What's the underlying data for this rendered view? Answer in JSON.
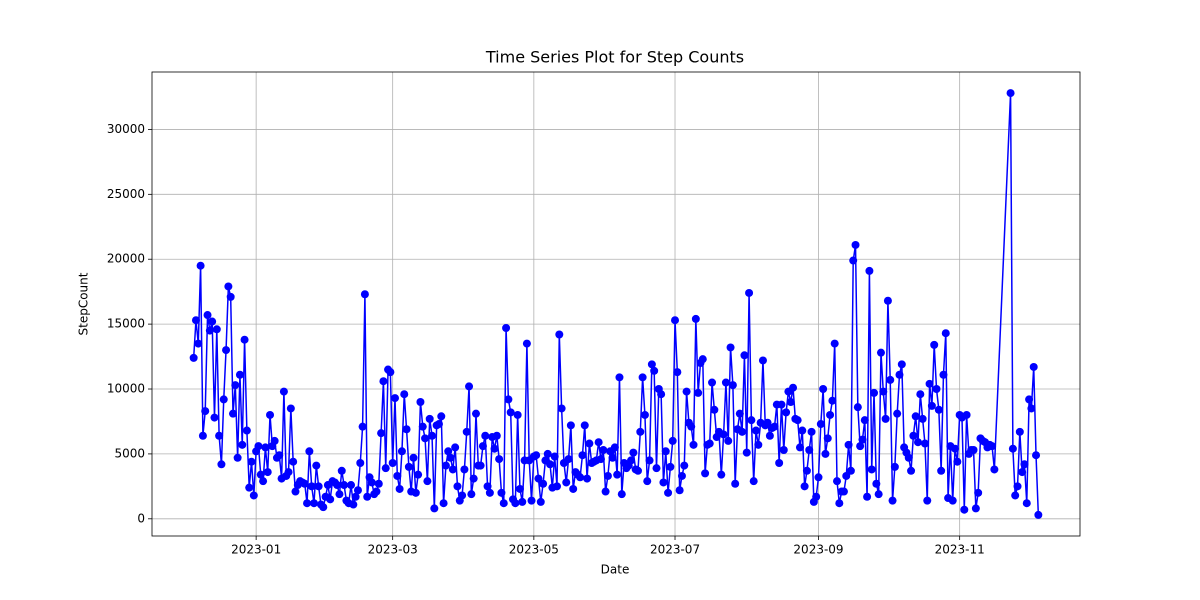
{
  "chart_data": {
    "type": "line",
    "title": "Time Series Plot for Step Counts",
    "x_label": "Date",
    "y_label": "StepCount",
    "color": "#0000ff",
    "grid": true,
    "x": [
      "2022-12-05",
      "2022-12-06",
      "2022-12-07",
      "2022-12-08",
      "2022-12-09",
      "2022-12-10",
      "2022-12-11",
      "2022-12-12",
      "2022-12-13",
      "2022-12-14",
      "2022-12-15",
      "2022-12-16",
      "2022-12-17",
      "2022-12-18",
      "2022-12-19",
      "2022-12-20",
      "2022-12-21",
      "2022-12-22",
      "2022-12-23",
      "2022-12-24",
      "2022-12-25",
      "2022-12-26",
      "2022-12-27",
      "2022-12-28",
      "2022-12-29",
      "2022-12-30",
      "2022-12-31",
      "2023-01-01",
      "2023-01-02",
      "2023-01-03",
      "2023-01-04",
      "2023-01-05",
      "2023-01-06",
      "2023-01-07",
      "2023-01-08",
      "2023-01-09",
      "2023-01-10",
      "2023-01-11",
      "2023-01-12",
      "2023-01-13",
      "2023-01-14",
      "2023-01-15",
      "2023-01-16",
      "2023-01-17",
      "2023-01-18",
      "2023-01-19",
      "2023-01-20",
      "2023-01-21",
      "2023-01-22",
      "2023-01-23",
      "2023-01-24",
      "2023-01-25",
      "2023-01-26",
      "2023-01-27",
      "2023-01-28",
      "2023-01-29",
      "2023-01-30",
      "2023-01-31",
      "2023-02-01",
      "2023-02-02",
      "2023-02-03",
      "2023-02-04",
      "2023-02-05",
      "2023-02-06",
      "2023-02-07",
      "2023-02-08",
      "2023-02-09",
      "2023-02-10",
      "2023-02-11",
      "2023-02-12",
      "2023-02-13",
      "2023-02-14",
      "2023-02-15",
      "2023-02-16",
      "2023-02-17",
      "2023-02-18",
      "2023-02-19",
      "2023-02-20",
      "2023-02-21",
      "2023-02-22",
      "2023-02-23",
      "2023-02-24",
      "2023-02-25",
      "2023-02-26",
      "2023-02-27",
      "2023-02-28",
      "2023-03-01",
      "2023-03-02",
      "2023-03-03",
      "2023-03-04",
      "2023-03-05",
      "2023-03-06",
      "2023-03-07",
      "2023-03-08",
      "2023-03-09",
      "2023-03-10",
      "2023-03-11",
      "2023-03-12",
      "2023-03-13",
      "2023-03-14",
      "2023-03-15",
      "2023-03-16",
      "2023-03-17",
      "2023-03-18",
      "2023-03-19",
      "2023-03-20",
      "2023-03-21",
      "2023-03-22",
      "2023-03-23",
      "2023-03-24",
      "2023-03-25",
      "2023-03-26",
      "2023-03-27",
      "2023-03-28",
      "2023-03-29",
      "2023-03-30",
      "2023-03-31",
      "2023-04-01",
      "2023-04-02",
      "2023-04-03",
      "2023-04-04",
      "2023-04-05",
      "2023-04-06",
      "2023-04-07",
      "2023-04-08",
      "2023-04-09",
      "2023-04-10",
      "2023-04-11",
      "2023-04-12",
      "2023-04-13",
      "2023-04-14",
      "2023-04-15",
      "2023-04-16",
      "2023-04-17",
      "2023-04-18",
      "2023-04-19",
      "2023-04-20",
      "2023-04-21",
      "2023-04-22",
      "2023-04-23",
      "2023-04-24",
      "2023-04-25",
      "2023-04-26",
      "2023-04-27",
      "2023-04-28",
      "2023-04-29",
      "2023-04-30",
      "2023-05-01",
      "2023-05-02",
      "2023-05-03",
      "2023-05-04",
      "2023-05-05",
      "2023-05-06",
      "2023-05-07",
      "2023-05-08",
      "2023-05-09",
      "2023-05-10",
      "2023-05-11",
      "2023-05-12",
      "2023-05-13",
      "2023-05-14",
      "2023-05-15",
      "2023-05-16",
      "2023-05-17",
      "2023-05-18",
      "2023-05-19",
      "2023-05-20",
      "2023-05-21",
      "2023-05-22",
      "2023-05-23",
      "2023-05-24",
      "2023-05-25",
      "2023-05-26",
      "2023-05-27",
      "2023-05-28",
      "2023-05-29",
      "2023-05-30",
      "2023-05-31",
      "2023-06-01",
      "2023-06-02",
      "2023-06-03",
      "2023-06-04",
      "2023-06-05",
      "2023-06-06",
      "2023-06-07",
      "2023-06-08",
      "2023-06-09",
      "2023-06-10",
      "2023-06-11",
      "2023-06-12",
      "2023-06-13",
      "2023-06-14",
      "2023-06-15",
      "2023-06-16",
      "2023-06-17",
      "2023-06-18",
      "2023-06-19",
      "2023-06-20",
      "2023-06-21",
      "2023-06-22",
      "2023-06-23",
      "2023-06-24",
      "2023-06-25",
      "2023-06-26",
      "2023-06-27",
      "2023-06-28",
      "2023-06-29",
      "2023-06-30",
      "2023-07-01",
      "2023-07-02",
      "2023-07-03",
      "2023-07-04",
      "2023-07-05",
      "2023-07-06",
      "2023-07-07",
      "2023-07-08",
      "2023-07-09",
      "2023-07-10",
      "2023-07-11",
      "2023-07-12",
      "2023-07-13",
      "2023-07-14",
      "2023-07-15",
      "2023-07-16",
      "2023-07-17",
      "2023-07-18",
      "2023-07-19",
      "2023-07-20",
      "2023-07-21",
      "2023-07-22",
      "2023-07-23",
      "2023-07-24",
      "2023-07-25",
      "2023-07-26",
      "2023-07-27",
      "2023-07-28",
      "2023-07-29",
      "2023-07-30",
      "2023-07-31",
      "2023-08-01",
      "2023-08-02",
      "2023-08-03",
      "2023-08-04",
      "2023-08-05",
      "2023-08-06",
      "2023-08-07",
      "2023-08-08",
      "2023-08-09",
      "2023-08-10",
      "2023-08-11",
      "2023-08-12",
      "2023-08-13",
      "2023-08-14",
      "2023-08-15",
      "2023-08-16",
      "2023-08-17",
      "2023-08-18",
      "2023-08-19",
      "2023-08-20",
      "2023-08-21",
      "2023-08-22",
      "2023-08-23",
      "2023-08-24",
      "2023-08-25",
      "2023-08-26",
      "2023-08-27",
      "2023-08-28",
      "2023-08-29",
      "2023-08-30",
      "2023-08-31",
      "2023-09-01",
      "2023-09-02",
      "2023-09-03",
      "2023-09-04",
      "2023-09-05",
      "2023-09-06",
      "2023-09-07",
      "2023-09-08",
      "2023-09-09",
      "2023-09-10",
      "2023-09-11",
      "2023-09-12",
      "2023-09-13",
      "2023-09-14",
      "2023-09-15",
      "2023-09-16",
      "2023-09-17",
      "2023-09-18",
      "2023-09-19",
      "2023-09-20",
      "2023-09-21",
      "2023-09-22",
      "2023-09-23",
      "2023-09-24",
      "2023-09-25",
      "2023-09-26",
      "2023-09-27",
      "2023-09-28",
      "2023-09-29",
      "2023-09-30",
      "2023-10-01",
      "2023-10-02",
      "2023-10-03",
      "2023-10-04",
      "2023-10-05",
      "2023-10-06",
      "2023-10-07",
      "2023-10-08",
      "2023-10-09",
      "2023-10-10",
      "2023-10-11",
      "2023-10-12",
      "2023-10-13",
      "2023-10-14",
      "2023-10-15",
      "2023-10-16",
      "2023-10-17",
      "2023-10-18",
      "2023-10-19",
      "2023-10-20",
      "2023-10-21",
      "2023-10-22",
      "2023-10-23",
      "2023-10-24",
      "2023-10-25",
      "2023-10-26",
      "2023-10-27",
      "2023-10-28",
      "2023-10-29",
      "2023-10-30",
      "2023-10-31",
      "2023-11-01",
      "2023-11-02",
      "2023-11-03",
      "2023-11-04",
      "2023-11-05",
      "2023-11-06",
      "2023-11-07",
      "2023-11-08",
      "2023-11-09",
      "2023-11-10",
      "2023-11-11",
      "2023-11-12",
      "2023-11-13",
      "2023-11-14",
      "2023-11-15",
      "2023-11-16",
      "2023-11-23",
      "2023-11-24",
      "2023-11-25",
      "2023-11-26",
      "2023-11-27",
      "2023-11-28",
      "2023-11-29",
      "2023-11-30",
      "2023-12-01",
      "2023-12-02",
      "2023-12-03",
      "2023-12-04",
      "2023-12-05"
    ],
    "values": [
      12400,
      15300,
      13500,
      19500,
      6400,
      8300,
      15700,
      14500,
      15200,
      7800,
      14600,
      6400,
      4200,
      9200,
      13000,
      17900,
      17100,
      8100,
      10300,
      4700,
      11100,
      5700,
      13800,
      6800,
      2400,
      4400,
      1800,
      5200,
      5600,
      3400,
      2900,
      5500,
      3600,
      8000,
      5600,
      6000,
      4700,
      4900,
      3100,
      9800,
      3300,
      3600,
      8500,
      4400,
      2100,
      2600,
      2900,
      2800,
      2700,
      1200,
      5200,
      2500,
      1200,
      4100,
      2500,
      1100,
      900,
      1700,
      2600,
      1500,
      2900,
      2800,
      2600,
      1900,
      3700,
      2600,
      1400,
      1200,
      2600,
      1100,
      1700,
      2200,
      4300,
      7100,
      17300,
      1700,
      3200,
      2800,
      1900,
      2100,
      2700,
      6600,
      10600,
      3900,
      11500,
      11300,
      4300,
      9300,
      3300,
      2300,
      5200,
      9600,
      6900,
      4000,
      2100,
      4700,
      2000,
      3400,
      9000,
      7100,
      6200,
      2900,
      7700,
      6400,
      800,
      7200,
      7300,
      7900,
      1200,
      4100,
      5200,
      4700,
      3800,
      5500,
      2500,
      1400,
      1800,
      3800,
      6700,
      10200,
      1900,
      3100,
      8100,
      4100,
      4100,
      5600,
      6400,
      2500,
      2000,
      6300,
      5400,
      6400,
      4600,
      2000,
      1200,
      14700,
      9200,
      8200,
      1500,
      1200,
      8000,
      2300,
      1300,
      4500,
      13500,
      4500,
      1400,
      4800,
      4900,
      3100,
      1300,
      2700,
      4500,
      5000,
      4200,
      2400,
      4800,
      2500,
      14200,
      8500,
      4300,
      2800,
      4600,
      7200,
      2300,
      3600,
      3400,
      3200,
      4900,
      7200,
      3100,
      5800,
      4300,
      4400,
      4500,
      5900,
      4600,
      5300,
      2100,
      3300,
      5200,
      4700,
      5500,
      3400,
      10900,
      1900,
      4300,
      3900,
      4100,
      4500,
      5100,
      3800,
      3700,
      6700,
      10900,
      8000,
      2900,
      4500,
      11900,
      11400,
      3900,
      10000,
      9600,
      2800,
      5200,
      2000,
      4000,
      6000,
      15300,
      11300,
      2200,
      3300,
      4100,
      9800,
      7400,
      7100,
      5700,
      15400,
      9700,
      12000,
      12300,
      3500,
      5700,
      5800,
      10500,
      8400,
      6300,
      6700,
      3400,
      6500,
      10500,
      6000,
      13200,
      10300,
      2700,
      6900,
      8100,
      6700,
      12600,
      5100,
      17400,
      7600,
      2900,
      6800,
      5700,
      7400,
      12200,
      7200,
      7400,
      6400,
      7000,
      7100,
      8800,
      4300,
      8800,
      5300,
      8200,
      9800,
      9000,
      10100,
      7700,
      7600,
      5500,
      6800,
      2500,
      3700,
      5300,
      6700,
      1300,
      1700,
      3200,
      7300,
      10000,
      5000,
      6200,
      8000,
      9100,
      13500,
      2900,
      1200,
      2100,
      2100,
      3300,
      5700,
      3700,
      19900,
      21100,
      8600,
      5600,
      6100,
      7600,
      1700,
      19100,
      3800,
      9700,
      2700,
      1900,
      12800,
      9800,
      7700,
      16800,
      10700,
      1400,
      4000,
      8100,
      11100,
      11900,
      5500,
      5100,
      4700,
      3700,
      6400,
      7900,
      5900,
      9600,
      7700,
      5800,
      1400,
      10400,
      8700,
      13400,
      10000,
      8400,
      3700,
      11100,
      14300,
      1600,
      5600,
      1400,
      5400,
      4400,
      8000,
      7800,
      700,
      8000,
      5000,
      5300,
      5300,
      800,
      2000,
      6200,
      6000,
      5900,
      5500,
      5700,
      5600,
      3800,
      32800,
      5400,
      1800,
      2500,
      6700,
      3600,
      4200,
      1200,
      9200,
      8500,
      11700,
      4900,
      300
    ],
    "xlim": [
      "2022-11-17",
      "2023-12-23"
    ],
    "xticks": [
      {
        "value": "2023-01-01",
        "label": "2023-01"
      },
      {
        "value": "2023-03-01",
        "label": "2023-03"
      },
      {
        "value": "2023-05-01",
        "label": "2023-05"
      },
      {
        "value": "2023-07-01",
        "label": "2023-07"
      },
      {
        "value": "2023-09-01",
        "label": "2023-09"
      },
      {
        "value": "2023-11-01",
        "label": "2023-11"
      }
    ],
    "ylim": [
      -1325,
      34425
    ],
    "yticks": [
      0,
      5000,
      10000,
      15000,
      20000,
      25000,
      30000
    ]
  }
}
